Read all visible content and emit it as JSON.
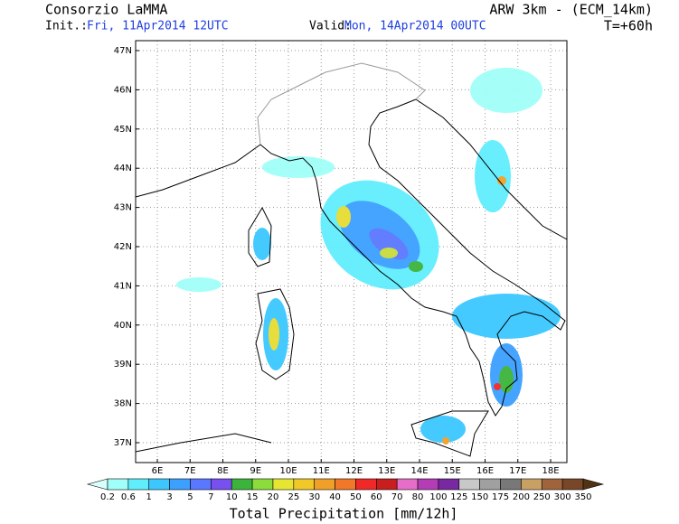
{
  "header": {
    "organization": "Consorzio LaMMA",
    "model": "ARW 3km - (ECM_14km)",
    "init_label": "Init.:",
    "init_time": "Fri, 11Apr2014 12UTC",
    "valid_label": "Valid:",
    "valid_time": "Mon, 14Apr2014 00UTC",
    "forecast_step": "T=+60h"
  },
  "map": {
    "lat_labels": [
      "47N",
      "46N",
      "45N",
      "44N",
      "43N",
      "42N",
      "41N",
      "40N",
      "39N",
      "38N",
      "37N"
    ],
    "lon_labels": [
      "6E",
      "7E",
      "8E",
      "9E",
      "10E",
      "11E",
      "12E",
      "13E",
      "14E",
      "15E",
      "16E",
      "17E",
      "18E"
    ]
  },
  "colorbar": {
    "title": "Total Precipitation [mm/12h]",
    "levels": [
      0.2,
      0.6,
      1,
      3,
      5,
      7,
      10,
      15,
      20,
      25,
      30,
      40,
      50,
      60,
      70,
      80,
      100,
      125,
      150,
      175,
      200,
      250,
      300,
      350
    ],
    "colors": [
      "#d8fffc",
      "#a0fff8",
      "#60eefc",
      "#3cc8ff",
      "#3ca0ff",
      "#5a78ff",
      "#7850f0",
      "#3cb43c",
      "#8cdc3c",
      "#e6e632",
      "#f0c828",
      "#f0a028",
      "#f07828",
      "#f02828",
      "#c81e1e",
      "#e66ec8",
      "#b43cb4",
      "#7828a0",
      "#c8c8c8",
      "#a0a0a0",
      "#787878",
      "#c8a064",
      "#a0643c",
      "#784628",
      "#503214"
    ]
  }
}
